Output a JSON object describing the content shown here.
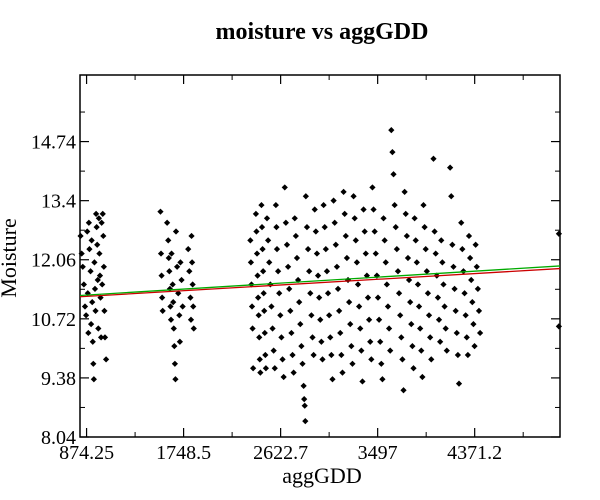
{
  "chart_data": {
    "type": "scatter",
    "title": "moisture vs aggGDD",
    "xlabel": "aggGDD",
    "ylabel": "Moisture",
    "xlim": [
      815,
      5140
    ],
    "ylim": [
      8.04,
      16.25
    ],
    "x_ticks": [
      {
        "value": 874.25,
        "label": "874.25"
      },
      {
        "value": 1748.5,
        "label": "1748.5"
      },
      {
        "value": 2622.7,
        "label": "2622.7"
      },
      {
        "value": 3497,
        "label": "3497"
      },
      {
        "value": 4371.2,
        "label": "4371.2"
      }
    ],
    "y_ticks": [
      {
        "value": 8.04,
        "label": "8.04"
      },
      {
        "value": 9.38,
        "label": "9.38"
      },
      {
        "value": 10.72,
        "label": "10.72"
      },
      {
        "value": 12.06,
        "label": "12.06"
      },
      {
        "value": 13.4,
        "label": "13.4"
      },
      {
        "value": 14.74,
        "label": "14.74"
      }
    ],
    "grid": false,
    "legend": "none",
    "point_color": "#000000",
    "trend_lines": [
      {
        "color": "#cc0000",
        "points": [
          [
            815,
            11.22
          ],
          [
            5140,
            11.86
          ]
        ]
      },
      {
        "color": "#00aa00",
        "points": [
          [
            815,
            11.25
          ],
          [
            5140,
            11.92
          ]
        ]
      }
    ],
    "series": [
      {
        "points": [
          [
            820,
            12.6
          ],
          [
            830,
            12.2
          ],
          [
            840,
            11.9
          ],
          [
            850,
            11.5
          ],
          [
            860,
            11.0
          ],
          [
            870,
            10.8
          ],
          [
            880,
            12.7
          ],
          [
            885,
            11.3
          ],
          [
            890,
            10.4
          ],
          [
            895,
            12.9
          ],
          [
            900,
            12.3
          ],
          [
            910,
            11.8
          ],
          [
            915,
            10.6
          ],
          [
            920,
            12.5
          ],
          [
            925,
            11.1
          ],
          [
            930,
            10.2
          ],
          [
            935,
            9.7
          ],
          [
            940,
            9.35
          ],
          [
            945,
            12.0
          ],
          [
            950,
            11.4
          ],
          [
            955,
            10.9
          ],
          [
            960,
            13.1
          ],
          [
            965,
            12.8
          ],
          [
            970,
            12.4
          ],
          [
            975,
            11.6
          ],
          [
            980,
            10.5
          ],
          [
            985,
            13.0
          ],
          [
            990,
            12.2
          ],
          [
            995,
            11.7
          ],
          [
            1000,
            11.2
          ],
          [
            1005,
            10.3
          ],
          [
            1010,
            12.9
          ],
          [
            1015,
            11.5
          ],
          [
            1020,
            13.1
          ],
          [
            1025,
            12.6
          ],
          [
            1030,
            11.9
          ],
          [
            1035,
            10.9
          ],
          [
            1040,
            10.3
          ],
          [
            1050,
            9.8
          ],
          [
            1540,
            13.15
          ],
          [
            1545,
            12.2
          ],
          [
            1550,
            11.7
          ],
          [
            1555,
            11.2
          ],
          [
            1560,
            10.9
          ],
          [
            1600,
            12.9
          ],
          [
            1610,
            12.5
          ],
          [
            1615,
            12.1
          ],
          [
            1620,
            11.8
          ],
          [
            1625,
            11.4
          ],
          [
            1630,
            11.0
          ],
          [
            1635,
            10.7
          ],
          [
            1640,
            12.2
          ],
          [
            1650,
            11.5
          ],
          [
            1655,
            11.1
          ],
          [
            1660,
            10.5
          ],
          [
            1665,
            10.1
          ],
          [
            1670,
            9.7
          ],
          [
            1675,
            9.35
          ],
          [
            1680,
            12.7
          ],
          [
            1690,
            11.9
          ],
          [
            1700,
            11.3
          ],
          [
            1710,
            10.8
          ],
          [
            1715,
            10.2
          ],
          [
            1720,
            12.0
          ],
          [
            1730,
            11.6
          ],
          [
            1740,
            11.0
          ],
          [
            1790,
            12.3
          ],
          [
            1800,
            11.8
          ],
          [
            1810,
            11.2
          ],
          [
            1815,
            10.7
          ],
          [
            1820,
            12.6
          ],
          [
            1825,
            12.0
          ],
          [
            1830,
            11.5
          ],
          [
            1835,
            11.0
          ],
          [
            1840,
            10.5
          ],
          [
            2350,
            12.5
          ],
          [
            2355,
            12.0
          ],
          [
            2360,
            11.5
          ],
          [
            2365,
            11.0
          ],
          [
            2370,
            10.5
          ],
          [
            2375,
            9.6
          ],
          [
            2400,
            13.1
          ],
          [
            2405,
            12.7
          ],
          [
            2410,
            12.2
          ],
          [
            2415,
            11.7
          ],
          [
            2420,
            11.2
          ],
          [
            2425,
            10.8
          ],
          [
            2430,
            10.3
          ],
          [
            2435,
            9.8
          ],
          [
            2440,
            9.5
          ],
          [
            2450,
            13.3
          ],
          [
            2455,
            12.8
          ],
          [
            2460,
            12.3
          ],
          [
            2465,
            11.8
          ],
          [
            2470,
            11.3
          ],
          [
            2475,
            10.9
          ],
          [
            2480,
            10.4
          ],
          [
            2485,
            9.9
          ],
          [
            2490,
            9.6
          ],
          [
            2500,
            13.0
          ],
          [
            2510,
            12.5
          ],
          [
            2520,
            12.0
          ],
          [
            2530,
            11.5
          ],
          [
            2540,
            11.0
          ],
          [
            2550,
            10.5
          ],
          [
            2560,
            10.0
          ],
          [
            2570,
            9.6
          ],
          [
            2580,
            13.3
          ],
          [
            2585,
            12.8
          ],
          [
            2590,
            12.3
          ],
          [
            2600,
            11.8
          ],
          [
            2610,
            11.3
          ],
          [
            2620,
            10.8
          ],
          [
            2630,
            10.3
          ],
          [
            2640,
            9.8
          ],
          [
            2650,
            9.4
          ],
          [
            2660,
            13.7
          ],
          [
            2670,
            12.9
          ],
          [
            2680,
            12.4
          ],
          [
            2690,
            11.9
          ],
          [
            2700,
            11.4
          ],
          [
            2710,
            10.9
          ],
          [
            2720,
            10.4
          ],
          [
            2730,
            9.9
          ],
          [
            2740,
            9.5
          ],
          [
            2750,
            13.0
          ],
          [
            2760,
            12.6
          ],
          [
            2770,
            12.1
          ],
          [
            2780,
            11.6
          ],
          [
            2790,
            11.1
          ],
          [
            2800,
            10.6
          ],
          [
            2810,
            10.1
          ],
          [
            2820,
            9.7
          ],
          [
            2830,
            9.2
          ],
          [
            2835,
            8.9
          ],
          [
            2840,
            8.75
          ],
          [
            2845,
            8.4
          ],
          [
            2850,
            13.5
          ],
          [
            2860,
            12.8
          ],
          [
            2870,
            12.3
          ],
          [
            2880,
            11.8
          ],
          [
            2890,
            11.3
          ],
          [
            2900,
            10.8
          ],
          [
            2910,
            10.3
          ],
          [
            2920,
            9.9
          ],
          [
            2930,
            13.2
          ],
          [
            2940,
            12.7
          ],
          [
            2950,
            12.2
          ],
          [
            2960,
            11.7
          ],
          [
            2970,
            11.2
          ],
          [
            2980,
            10.7
          ],
          [
            2990,
            10.2
          ],
          [
            3000,
            9.8
          ],
          [
            3010,
            13.3
          ],
          [
            3020,
            12.8
          ],
          [
            3030,
            12.3
          ],
          [
            3040,
            11.8
          ],
          [
            3050,
            11.3
          ],
          [
            3060,
            10.8
          ],
          [
            3070,
            10.3
          ],
          [
            3080,
            9.9
          ],
          [
            3090,
            9.35
          ],
          [
            3100,
            13.4
          ],
          [
            3110,
            12.9
          ],
          [
            3120,
            12.4
          ],
          [
            3130,
            11.9
          ],
          [
            3140,
            11.4
          ],
          [
            3150,
            10.9
          ],
          [
            3160,
            10.4
          ],
          [
            3170,
            9.9
          ],
          [
            3180,
            9.5
          ],
          [
            3190,
            13.6
          ],
          [
            3200,
            13.1
          ],
          [
            3210,
            12.6
          ],
          [
            3220,
            12.1
          ],
          [
            3230,
            11.6
          ],
          [
            3240,
            11.1
          ],
          [
            3250,
            10.6
          ],
          [
            3260,
            10.1
          ],
          [
            3270,
            9.7
          ],
          [
            3280,
            13.5
          ],
          [
            3290,
            13.0
          ],
          [
            3300,
            12.5
          ],
          [
            3310,
            12.0
          ],
          [
            3320,
            11.5
          ],
          [
            3330,
            11.0
          ],
          [
            3340,
            10.5
          ],
          [
            3350,
            10.0
          ],
          [
            3360,
            9.3
          ],
          [
            3370,
            13.2
          ],
          [
            3380,
            12.7
          ],
          [
            3390,
            12.2
          ],
          [
            3400,
            11.7
          ],
          [
            3410,
            11.2
          ],
          [
            3420,
            10.7
          ],
          [
            3430,
            10.2
          ],
          [
            3440,
            9.8
          ],
          [
            3450,
            13.7
          ],
          [
            3460,
            13.2
          ],
          [
            3470,
            12.7
          ],
          [
            3480,
            12.2
          ],
          [
            3490,
            11.7
          ],
          [
            3500,
            11.2
          ],
          [
            3510,
            10.7
          ],
          [
            3520,
            10.2
          ],
          [
            3530,
            9.7
          ],
          [
            3540,
            9.35
          ],
          [
            3550,
            13.0
          ],
          [
            3560,
            12.5
          ],
          [
            3570,
            12.0
          ],
          [
            3580,
            11.5
          ],
          [
            3590,
            11.0
          ],
          [
            3600,
            10.5
          ],
          [
            3610,
            10.0
          ],
          [
            3620,
            15.0
          ],
          [
            3630,
            14.5
          ],
          [
            3640,
            14.0
          ],
          [
            3650,
            13.3
          ],
          [
            3660,
            12.8
          ],
          [
            3670,
            12.3
          ],
          [
            3680,
            11.8
          ],
          [
            3690,
            11.3
          ],
          [
            3700,
            10.8
          ],
          [
            3710,
            10.3
          ],
          [
            3720,
            9.8
          ],
          [
            3730,
            9.1
          ],
          [
            3740,
            13.6
          ],
          [
            3750,
            13.1
          ],
          [
            3760,
            12.6
          ],
          [
            3770,
            12.1
          ],
          [
            3780,
            11.6
          ],
          [
            3790,
            11.1
          ],
          [
            3800,
            10.6
          ],
          [
            3810,
            10.1
          ],
          [
            3820,
            9.6
          ],
          [
            3830,
            13.0
          ],
          [
            3840,
            12.5
          ],
          [
            3850,
            12.0
          ],
          [
            3860,
            11.5
          ],
          [
            3870,
            11.0
          ],
          [
            3880,
            10.5
          ],
          [
            3890,
            10.0
          ],
          [
            3900,
            9.4
          ],
          [
            3910,
            13.3
          ],
          [
            3920,
            12.8
          ],
          [
            3930,
            12.3
          ],
          [
            3940,
            11.8
          ],
          [
            3950,
            11.3
          ],
          [
            3960,
            10.8
          ],
          [
            3970,
            10.3
          ],
          [
            3980,
            9.8
          ],
          [
            4000,
            14.35
          ],
          [
            4010,
            12.7
          ],
          [
            4020,
            12.2
          ],
          [
            4030,
            11.7
          ],
          [
            4040,
            11.2
          ],
          [
            4050,
            10.7
          ],
          [
            4060,
            10.2
          ],
          [
            4070,
            12.5
          ],
          [
            4080,
            12.0
          ],
          [
            4090,
            11.5
          ],
          [
            4100,
            11.0
          ],
          [
            4110,
            10.5
          ],
          [
            4120,
            10.0
          ],
          [
            4150,
            14.15
          ],
          [
            4160,
            13.5
          ],
          [
            4170,
            12.4
          ],
          [
            4180,
            11.9
          ],
          [
            4190,
            11.4
          ],
          [
            4200,
            10.9
          ],
          [
            4210,
            10.4
          ],
          [
            4220,
            9.9
          ],
          [
            4230,
            9.25
          ],
          [
            4250,
            12.9
          ],
          [
            4260,
            12.3
          ],
          [
            4270,
            11.8
          ],
          [
            4280,
            11.3
          ],
          [
            4290,
            10.8
          ],
          [
            4300,
            10.3
          ],
          [
            4310,
            9.9
          ],
          [
            4320,
            12.6
          ],
          [
            4330,
            12.1
          ],
          [
            4340,
            11.6
          ],
          [
            4350,
            11.1
          ],
          [
            4360,
            10.6
          ],
          [
            4370,
            10.1
          ],
          [
            4380,
            12.4
          ],
          [
            4390,
            11.9
          ],
          [
            4400,
            11.4
          ],
          [
            4410,
            10.9
          ],
          [
            4420,
            10.4
          ],
          [
            5130,
            12.65
          ],
          [
            5130,
            10.55
          ]
        ]
      }
    ]
  }
}
